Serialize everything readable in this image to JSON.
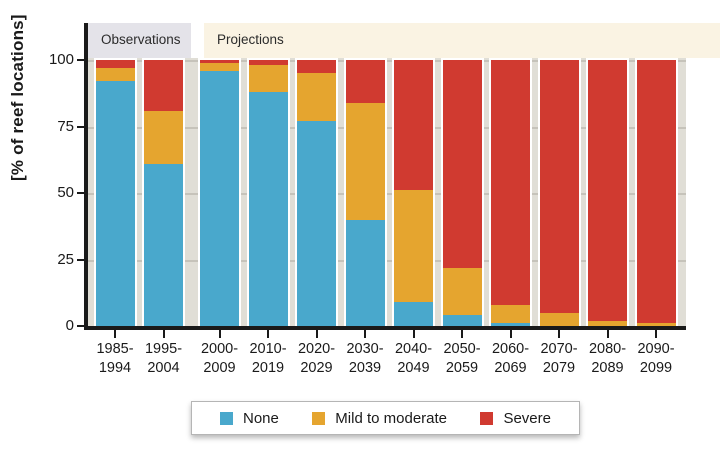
{
  "colors": {
    "none": "#49a8cc",
    "mild": "#e5a52f",
    "severe": "#d03a30",
    "observations_band": "#e4e3e9",
    "projections_band": "#faf3e3",
    "plot_bg": "#e0ded6",
    "gridline": "#c6c3ba",
    "axis": "#1a1a1a",
    "tick": "#1a1a1a"
  },
  "bands": {
    "observations": {
      "label": "Observations",
      "category_span": [
        0,
        1
      ]
    },
    "projections": {
      "label": "Projections",
      "category_span": [
        2,
        11
      ]
    }
  },
  "y_axis": {
    "ticks": [
      0,
      25,
      50,
      75,
      100
    ]
  },
  "legend": {
    "items": [
      {
        "label": "None",
        "color_key": "none"
      },
      {
        "label": "Mild to moderate",
        "color_key": "mild"
      },
      {
        "label": "Severe",
        "color_key": "severe"
      }
    ]
  },
  "chart_data": {
    "type": "bar",
    "stacked": true,
    "ylabel": "[% of reef locations]",
    "ylim": [
      0,
      100
    ],
    "grid": true,
    "legend_position": "bottom",
    "categories": [
      "1985-\n1994",
      "1995-\n2004",
      "2000-\n2009",
      "2010-\n2019",
      "2020-\n2029",
      "2030-\n2039",
      "2040-\n2049",
      "2050-\n2059",
      "2060-\n2069",
      "2070-\n2079",
      "2080-\n2089",
      "2090-\n2099"
    ],
    "series": [
      {
        "name": "None",
        "color_key": "none",
        "values": [
          92,
          61,
          96,
          88,
          77,
          40,
          9,
          4,
          1,
          0,
          0,
          0
        ]
      },
      {
        "name": "Mild to moderate",
        "color_key": "mild",
        "values": [
          5,
          20,
          3,
          10,
          18,
          44,
          42,
          18,
          7,
          5,
          2,
          1
        ]
      },
      {
        "name": "Severe",
        "color_key": "severe",
        "values": [
          3,
          19,
          1,
          2,
          5,
          16,
          49,
          78,
          92,
          95,
          98,
          99
        ]
      }
    ]
  }
}
